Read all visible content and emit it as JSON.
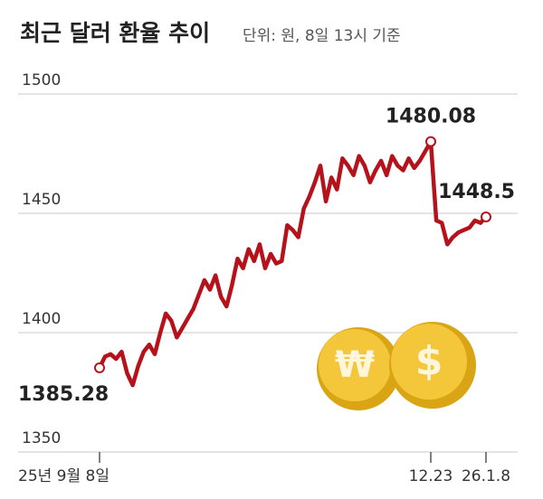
{
  "chart_data": {
    "type": "line",
    "title": "최근 달러 환율 추이",
    "subtitle": "단위: 원, 8일 13시 기준",
    "categories": [
      "25년 9월 8일",
      null,
      null,
      null,
      null,
      null,
      null,
      null,
      null,
      null,
      null,
      null,
      null,
      null,
      null,
      null,
      null,
      null,
      null,
      null,
      null,
      null,
      null,
      null,
      null,
      null,
      null,
      null,
      null,
      null,
      null,
      null,
      null,
      null,
      null,
      null,
      null,
      null,
      null,
      null,
      null,
      null,
      null,
      null,
      null,
      null,
      null,
      null,
      null,
      null,
      null,
      null,
      null,
      null,
      null,
      null,
      null,
      null,
      null,
      null,
      "12.23",
      null,
      null,
      null,
      null,
      null,
      null,
      null,
      null,
      null,
      "26.1.8"
    ],
    "values": [
      1385.28,
      1390,
      1391,
      1389,
      1392,
      1383,
      1378,
      1386,
      1392,
      1395,
      1391,
      1400,
      1408,
      1405,
      1398,
      1402,
      1406,
      1410,
      1416,
      1422,
      1418,
      1424,
      1415,
      1411,
      1420,
      1431,
      1427,
      1435,
      1430,
      1437,
      1427,
      1433,
      1429,
      1430,
      1445,
      1443,
      1440,
      1452,
      1457,
      1463,
      1470,
      1455,
      1465,
      1460,
      1473,
      1470,
      1466,
      1474,
      1470,
      1463,
      1468,
      1472,
      1466,
      1474,
      1470,
      1468,
      1473,
      1469,
      1472,
      1476,
      1480.08,
      1447,
      1446,
      1437,
      1440,
      1442,
      1443,
      1444,
      1447,
      1446,
      1448.5
    ],
    "color": "#b5121b",
    "ylim": [
      1350,
      1500
    ],
    "yticks": [
      1350,
      1400,
      1450,
      1500
    ],
    "grid": true,
    "illustration_symbols": [
      "₩",
      "$"
    ]
  }
}
